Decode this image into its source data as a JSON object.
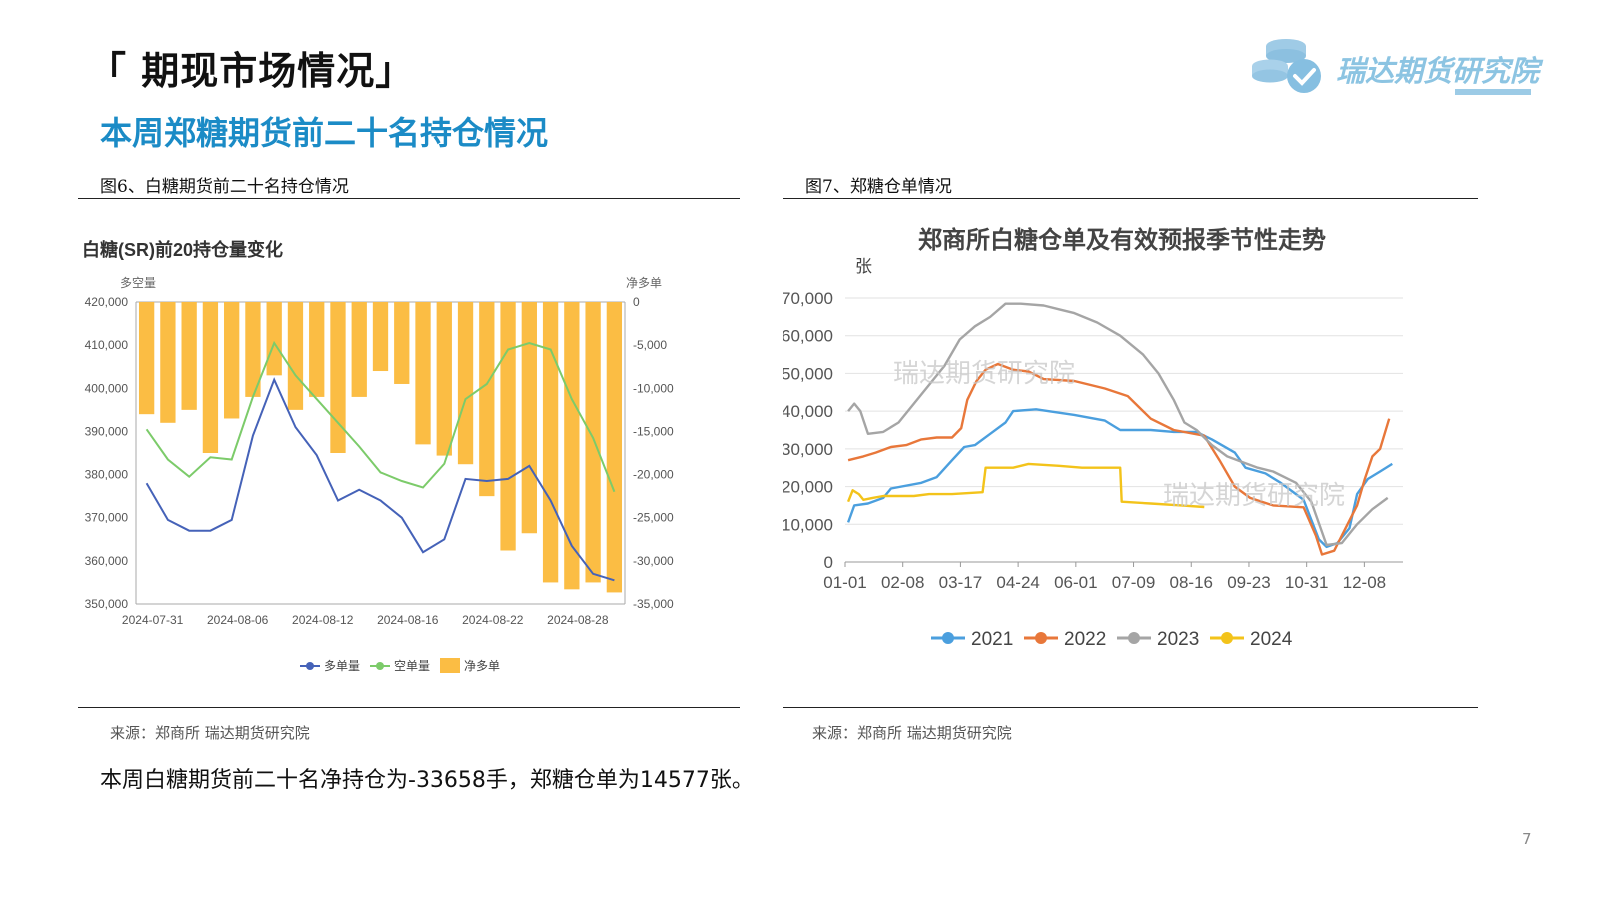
{
  "slide": {
    "title": "「 期现市场情况」",
    "subtitle": "本周郑糖期货前二十名持仓情况",
    "logo_text": "瑞达期货研究院",
    "summary": "本周白糖期货前二十名净持仓为-33658手，郑糖仓单为14577张。",
    "page_number": "7"
  },
  "figures": [
    {
      "caption": "图6、白糖期货前二十名持仓情况",
      "source": "来源：郑商所   瑞达期货研究院"
    },
    {
      "caption": "图7、郑糖仓单情况",
      "source": "来源：郑商所  瑞达期货研究院"
    }
  ],
  "colors": {
    "accent": "#1b8bc6",
    "long": "#4562b8",
    "short": "#7ccb6a",
    "net": "#fbbd44",
    "y2021": "#4b9fde",
    "y2022": "#e8773a",
    "y2023": "#a5a5a5",
    "y2024": "#f3c31a"
  },
  "chart_data": [
    {
      "type": "bar+line",
      "title": "白糖(SR)前20持仓量变化",
      "left_axis_label": "多空量",
      "right_axis_label": "净多单",
      "left_ylim": [
        350000,
        420000
      ],
      "right_ylim": [
        -35000,
        0
      ],
      "left_ticks": [
        "420,000",
        "410,000",
        "400,000",
        "390,000",
        "380,000",
        "370,000",
        "360,000",
        "350,000"
      ],
      "right_ticks": [
        "0",
        "-5,000",
        "-10,000",
        "-15,000",
        "-20,000",
        "-25,000",
        "-30,000",
        "-35,000"
      ],
      "x_tick_labels": [
        "2024-07-31",
        "2024-08-06",
        "2024-08-12",
        "2024-08-16",
        "2024-08-22",
        "2024-08-28"
      ],
      "x_count": 23,
      "legend": [
        "多单量",
        "空单量",
        "净多单"
      ],
      "series": [
        {
          "name": "多单量",
          "axis": "left",
          "type": "line",
          "values": [
            378000,
            369500,
            367000,
            367000,
            369500,
            389000,
            402000,
            391000,
            384500,
            374000,
            376500,
            374000,
            370000,
            362000,
            365000,
            379000,
            378500,
            379000,
            382000,
            374000,
            363500,
            357000,
            355500
          ]
        },
        {
          "name": "空单量",
          "axis": "left",
          "type": "line",
          "values": [
            390500,
            383500,
            379500,
            384000,
            383500,
            398000,
            410500,
            403000,
            397500,
            392000,
            386500,
            380500,
            378500,
            377000,
            382500,
            397500,
            401000,
            409000,
            410500,
            409000,
            397500,
            388500,
            376000
          ]
        },
        {
          "name": "净多单",
          "axis": "right",
          "type": "bar",
          "values": [
            -13000,
            -14000,
            -12500,
            -17500,
            -13500,
            -11000,
            -8500,
            -12500,
            -11000,
            -17500,
            -11000,
            -8000,
            -9500,
            -16500,
            -17800,
            -18800,
            -22500,
            -28800,
            -26800,
            -32500,
            -33300,
            -32500,
            -33658
          ]
        }
      ]
    },
    {
      "type": "line",
      "title": "郑商所白糖仓单及有效预报季节性走势",
      "ylabel": "张",
      "ylim": [
        0,
        70000
      ],
      "y_tick_labels": [
        "70,000",
        "60,000",
        "50,000",
        "40,000",
        "30,000",
        "20,000",
        "10,000",
        "0"
      ],
      "x_tick_labels": [
        "01-01",
        "02-08",
        "03-17",
        "04-24",
        "06-01",
        "07-09",
        "08-16",
        "09-23",
        "10-31",
        "12-08"
      ],
      "x_range_days": [
        0,
        365
      ],
      "watermarks": [
        "瑞达期货研究院",
        "瑞达期货研究院"
      ],
      "series": [
        {
          "name": "2021",
          "points": [
            [
              2,
              10500
            ],
            [
              6,
              15000
            ],
            [
              15,
              15500
            ],
            [
              25,
              17000
            ],
            [
              30,
              19500
            ],
            [
              50,
              21000
            ],
            [
              60,
              22500
            ],
            [
              70,
              27000
            ],
            [
              78,
              30500
            ],
            [
              85,
              31000
            ],
            [
              95,
              34000
            ],
            [
              105,
              37000
            ],
            [
              110,
              40000
            ],
            [
              125,
              40500
            ],
            [
              150,
              39000
            ],
            [
              170,
              37500
            ],
            [
              180,
              35000
            ],
            [
              200,
              35000
            ],
            [
              215,
              34500
            ],
            [
              230,
              34500
            ],
            [
              240,
              32500
            ],
            [
              255,
              29000
            ],
            [
              262,
              25000
            ],
            [
              275,
              23500
            ],
            [
              285,
              21000
            ],
            [
              295,
              18000
            ],
            [
              300,
              16500
            ],
            [
              310,
              6000
            ],
            [
              315,
              4000
            ],
            [
              322,
              5000
            ],
            [
              330,
              9000
            ],
            [
              335,
              18000
            ],
            [
              342,
              22000
            ],
            [
              350,
              24000
            ],
            [
              358,
              26000
            ]
          ]
        },
        {
          "name": "2022",
          "points": [
            [
              2,
              27000
            ],
            [
              12,
              28000
            ],
            [
              20,
              29000
            ],
            [
              30,
              30500
            ],
            [
              40,
              31000
            ],
            [
              50,
              32500
            ],
            [
              60,
              33000
            ],
            [
              70,
              33000
            ],
            [
              76,
              35500
            ],
            [
              80,
              43000
            ],
            [
              86,
              48000
            ],
            [
              92,
              51000
            ],
            [
              100,
              52500
            ],
            [
              110,
              51000
            ],
            [
              120,
              50500
            ],
            [
              130,
              48500
            ],
            [
              150,
              48000
            ],
            [
              170,
              46000
            ],
            [
              185,
              44000
            ],
            [
              200,
              38000
            ],
            [
              215,
              35000
            ],
            [
              235,
              33500
            ],
            [
              245,
              27000
            ],
            [
              255,
              20000
            ],
            [
              265,
              17000
            ],
            [
              280,
              15000
            ],
            [
              300,
              14500
            ],
            [
              308,
              7000
            ],
            [
              312,
              2000
            ],
            [
              320,
              3000
            ],
            [
              335,
              15000
            ],
            [
              340,
              22000
            ],
            [
              345,
              28000
            ],
            [
              350,
              30000
            ],
            [
              356,
              38000
            ]
          ]
        },
        {
          "name": "2023",
          "points": [
            [
              2,
              40000
            ],
            [
              6,
              42000
            ],
            [
              10,
              40000
            ],
            [
              15,
              34000
            ],
            [
              25,
              34500
            ],
            [
              35,
              37000
            ],
            [
              45,
              42000
            ],
            [
              55,
              47000
            ],
            [
              65,
              52000
            ],
            [
              75,
              59000
            ],
            [
              85,
              62500
            ],
            [
              95,
              65000
            ],
            [
              105,
              68500
            ],
            [
              115,
              68500
            ],
            [
              130,
              68000
            ],
            [
              140,
              67000
            ],
            [
              150,
              66000
            ],
            [
              165,
              63500
            ],
            [
              180,
              60000
            ],
            [
              195,
              55000
            ],
            [
              205,
              50000
            ],
            [
              215,
              43000
            ],
            [
              222,
              37000
            ],
            [
              230,
              35000
            ],
            [
              240,
              31000
            ],
            [
              250,
              28000
            ],
            [
              260,
              26500
            ],
            [
              270,
              25000
            ],
            [
              280,
              24000
            ],
            [
              295,
              21000
            ],
            [
              305,
              16000
            ],
            [
              315,
              4500
            ],
            [
              325,
              5000
            ],
            [
              335,
              10000
            ],
            [
              345,
              14000
            ],
            [
              355,
              17000
            ]
          ]
        },
        {
          "name": "2024",
          "points": [
            [
              2,
              16000
            ],
            [
              5,
              19000
            ],
            [
              9,
              18000
            ],
            [
              12,
              16500
            ],
            [
              18,
              17000
            ],
            [
              25,
              17500
            ],
            [
              45,
              17500
            ],
            [
              55,
              18000
            ],
            [
              70,
              18000
            ],
            [
              90,
              18500
            ],
            [
              92,
              25000
            ],
            [
              110,
              25000
            ],
            [
              120,
              26000
            ],
            [
              140,
              25500
            ],
            [
              155,
              25000
            ],
            [
              170,
              25000
            ],
            [
              180,
              25000
            ],
            [
              181,
              16000
            ],
            [
              200,
              15500
            ],
            [
              220,
              15000
            ],
            [
              235,
              14577
            ]
          ]
        }
      ]
    }
  ]
}
